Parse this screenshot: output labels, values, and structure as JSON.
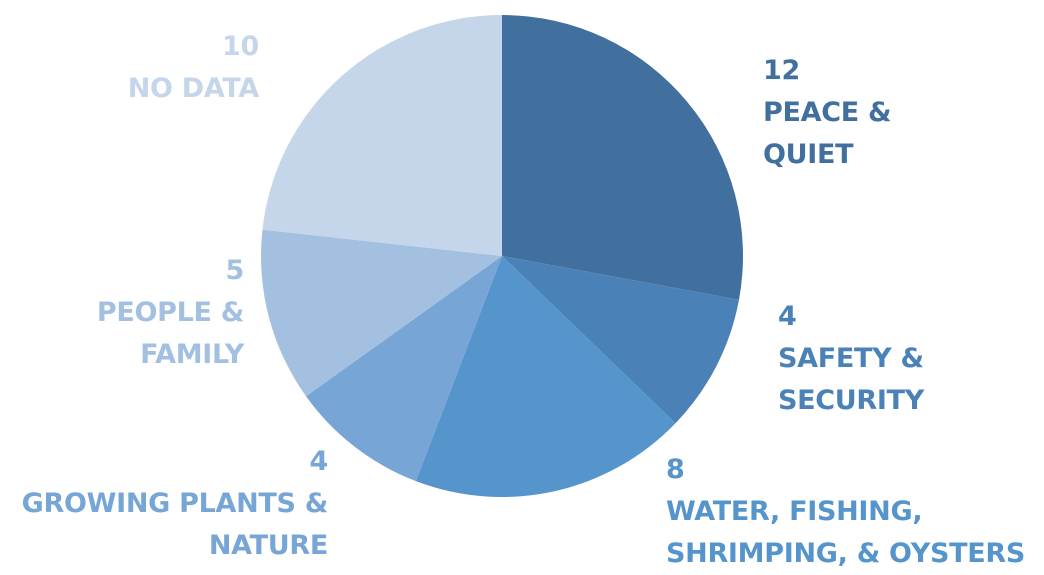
{
  "chart_data": {
    "type": "pie",
    "start_angle_deg": 0,
    "direction": "clockwise",
    "slices": [
      {
        "value": 12,
        "count_label": "12",
        "name_lines": [
          "PEACE &",
          "QUIET"
        ],
        "color": "#41709f"
      },
      {
        "value": 4,
        "count_label": "4",
        "name_lines": [
          "SAFETY &",
          "SECURITY"
        ],
        "color": "#4a82b8"
      },
      {
        "value": 8,
        "count_label": "8",
        "name_lines": [
          "WATER, FISHING,",
          "SHRIMPING, & OYSTERS"
        ],
        "color": "#5694cc"
      },
      {
        "value": 4,
        "count_label": "4",
        "name_lines": [
          "GROWING PLANTS &",
          "NATURE"
        ],
        "color": "#77a5d6"
      },
      {
        "value": 5,
        "count_label": "5",
        "name_lines": [
          "PEOPLE &",
          "FAMILY"
        ],
        "color": "#a3c0e1"
      },
      {
        "value": 10,
        "count_label": "10",
        "name_lines": [
          "NO DATA"
        ],
        "color": "#c5d6ea"
      }
    ]
  }
}
